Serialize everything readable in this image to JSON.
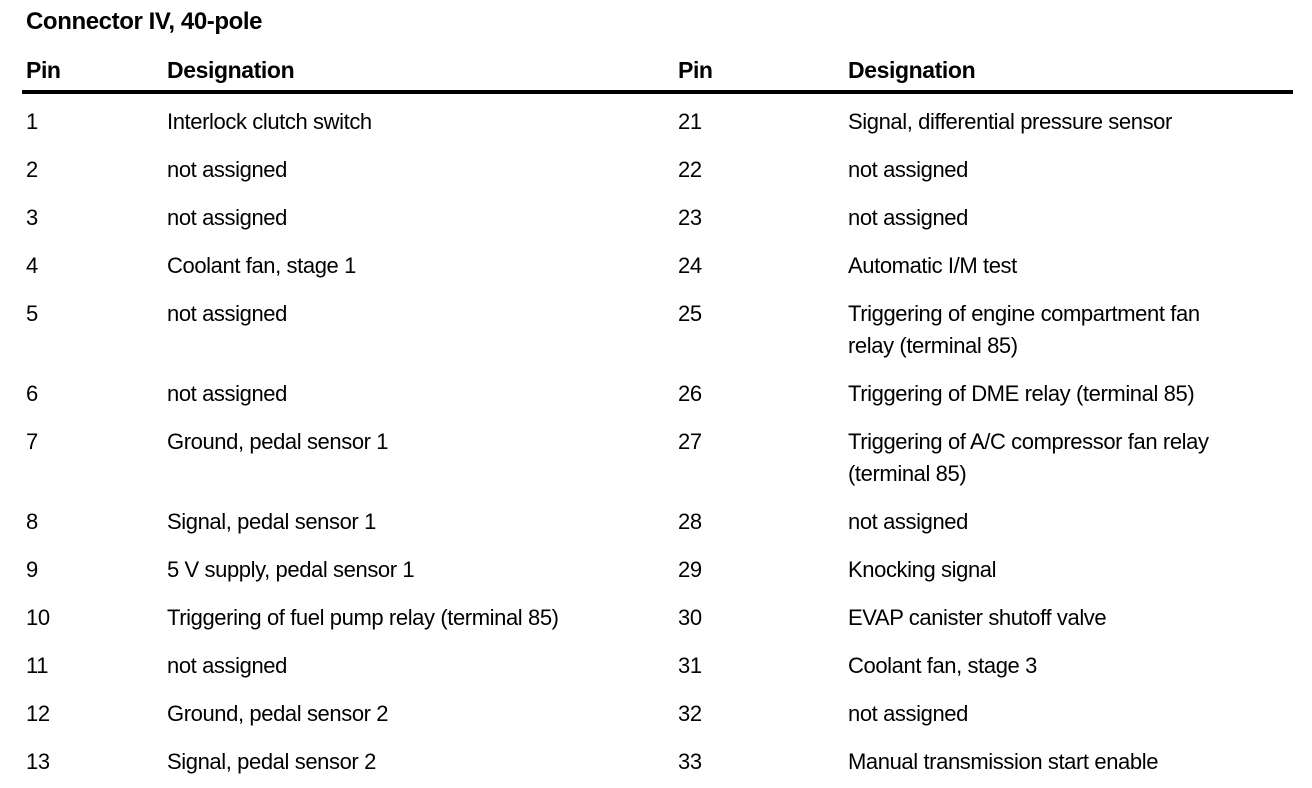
{
  "title": "Connector IV, 40-pole",
  "table": {
    "headers": {
      "pin_left": "Pin",
      "designation_left": "Designation",
      "pin_right": "Pin",
      "designation_right": "Designation"
    },
    "rows": [
      {
        "pin_l": "1",
        "desig_l": "Interlock clutch switch",
        "pin_r": "21",
        "desig_r": "Signal, differential pressure sensor"
      },
      {
        "pin_l": "2",
        "desig_l": "not assigned",
        "pin_r": "22",
        "desig_r": "not assigned"
      },
      {
        "pin_l": "3",
        "desig_l": "not assigned",
        "pin_r": "23",
        "desig_r": "not assigned"
      },
      {
        "pin_l": "4",
        "desig_l": "Coolant fan, stage 1",
        "pin_r": "24",
        "desig_r": "Automatic I/M test"
      },
      {
        "pin_l": "5",
        "desig_l": "not assigned",
        "pin_r": "25",
        "desig_r": "Triggering of engine compartment fan\nrelay (terminal 85)"
      },
      {
        "pin_l": "6",
        "desig_l": "not assigned",
        "pin_r": "26",
        "desig_r": "Triggering of DME relay (terminal 85)"
      },
      {
        "pin_l": "7",
        "desig_l": "Ground, pedal sensor 1",
        "pin_r": "27",
        "desig_r": "Triggering of A/C compressor fan relay\n(terminal 85)"
      },
      {
        "pin_l": "8",
        "desig_l": "Signal, pedal sensor 1",
        "pin_r": "28",
        "desig_r": "not assigned"
      },
      {
        "pin_l": "9",
        "desig_l": "5 V supply, pedal sensor 1",
        "pin_r": "29",
        "desig_r": "Knocking signal"
      },
      {
        "pin_l": "10",
        "desig_l": "Triggering of fuel pump relay (terminal 85)",
        "pin_r": "30",
        "desig_r": "EVAP canister shutoff valve"
      },
      {
        "pin_l": "11",
        "desig_l": "not assigned",
        "pin_r": "31",
        "desig_r": "Coolant fan, stage 3"
      },
      {
        "pin_l": "12",
        "desig_l": "Ground, pedal sensor 2",
        "pin_r": "32",
        "desig_r": "not assigned"
      },
      {
        "pin_l": "13",
        "desig_l": "Signal, pedal sensor 2",
        "pin_r": "33",
        "desig_r": "Manual transmission start enable"
      }
    ]
  },
  "colors": {
    "text": "#000000",
    "background": "#ffffff",
    "rule": "#000000"
  }
}
